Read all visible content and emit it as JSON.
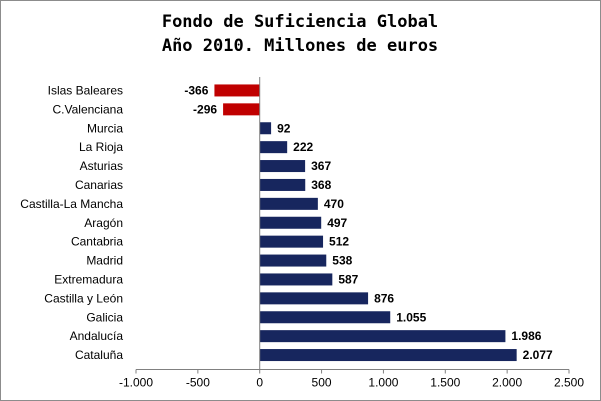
{
  "colors": {
    "positive": "#17265e",
    "negative": "#c00000",
    "axis": "#808080"
  },
  "chart_data": {
    "type": "bar",
    "orientation": "horizontal",
    "title": "Fondo de Suficiencia Global",
    "subtitle": "Año 2010. Millones de euros",
    "xlabel": "",
    "ylabel": "",
    "xlim": [
      -1000,
      2500
    ],
    "x_ticks": [
      -1000,
      -500,
      0,
      500,
      1000,
      1500,
      2000,
      2500
    ],
    "x_tick_labels": [
      "-1.000",
      "-500",
      "0",
      "500",
      "1.000",
      "1.500",
      "2.000",
      "2.500"
    ],
    "grid": false,
    "legend": "none",
    "categories": [
      "Islas Baleares",
      "C.Valenciana",
      "Murcia",
      "La Rioja",
      "Asturias",
      "Canarias",
      "Castilla-La Mancha",
      "Aragón",
      "Cantabria",
      "Madrid",
      "Extremadura",
      "Castilla y León",
      "Galicia",
      "Andalucía",
      "Cataluña"
    ],
    "values": [
      -366,
      -296,
      92,
      222,
      367,
      368,
      470,
      497,
      512,
      538,
      587,
      876,
      1055,
      1986,
      2077
    ],
    "value_labels": [
      "-366",
      "-296",
      "92",
      "222",
      "367",
      "368",
      "470",
      "497",
      "512",
      "538",
      "587",
      "876",
      "1.055",
      "1.986",
      "2.077"
    ]
  }
}
